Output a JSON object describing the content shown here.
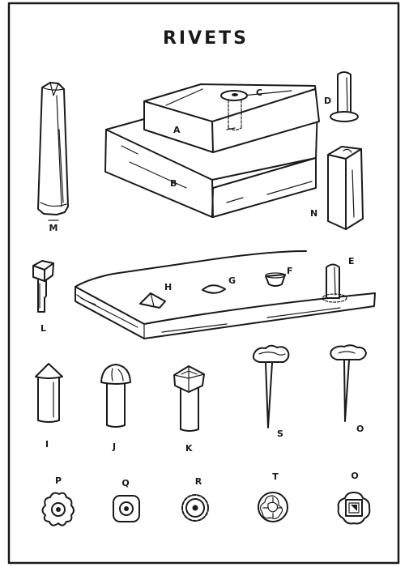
{
  "title": "RIVETS",
  "labels": {
    "A": "A",
    "B": "B",
    "C": "C",
    "D": "D",
    "E": "E",
    "F": "F",
    "G": "G",
    "H": "H",
    "M": "M",
    "N": "N",
    "L": "L",
    "I": "I",
    "J": "J",
    "K": "K",
    "S": "S",
    "O_top": "O",
    "O_bottom": "O",
    "P": "P",
    "Q": "Q",
    "R": "R",
    "T": "T"
  }
}
